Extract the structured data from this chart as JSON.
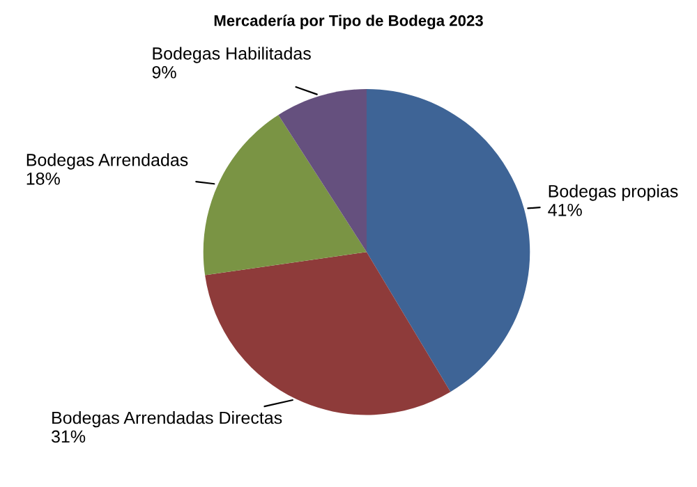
{
  "chart_data": {
    "type": "pie",
    "title": "Mercadería por Tipo de Bodega 2023",
    "categories": [
      "Bodegas propias",
      "Bodegas Arrendadas Directas",
      "Bodegas Arrendadas",
      "Bodegas Habilitadas"
    ],
    "values": [
      41,
      31,
      18,
      9
    ],
    "value_labels": [
      "41%",
      "31%",
      "18%",
      "9%"
    ],
    "colors": [
      "#3e6496",
      "#8e3b3a",
      "#7a9444",
      "#65507e"
    ],
    "legend": false
  }
}
